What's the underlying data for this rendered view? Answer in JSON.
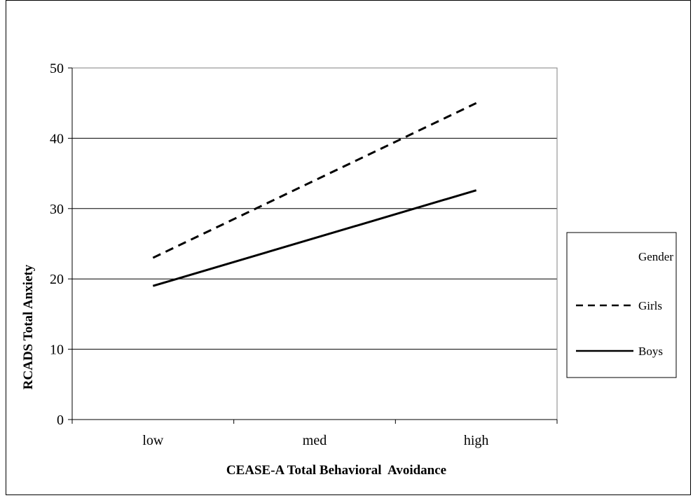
{
  "chart_data": {
    "type": "line",
    "categories": [
      "low",
      "med",
      "high"
    ],
    "series": [
      {
        "name": "Girls",
        "values": [
          23,
          34,
          45
        ],
        "style": "dashed",
        "color": "#000000"
      },
      {
        "name": "Boys",
        "values": [
          19,
          25.8,
          32.6
        ],
        "style": "solid",
        "color": "#000000"
      }
    ],
    "ylim": [
      0,
      50
    ],
    "yticks": [
      0,
      10,
      20,
      30,
      40,
      50
    ],
    "xlabel": "CEASE-A Total Behavioral  Avoidance",
    "ylabel": "RCADS Total Anxiety",
    "legend": {
      "title": "Gender",
      "placement": "right"
    },
    "grid": true
  }
}
